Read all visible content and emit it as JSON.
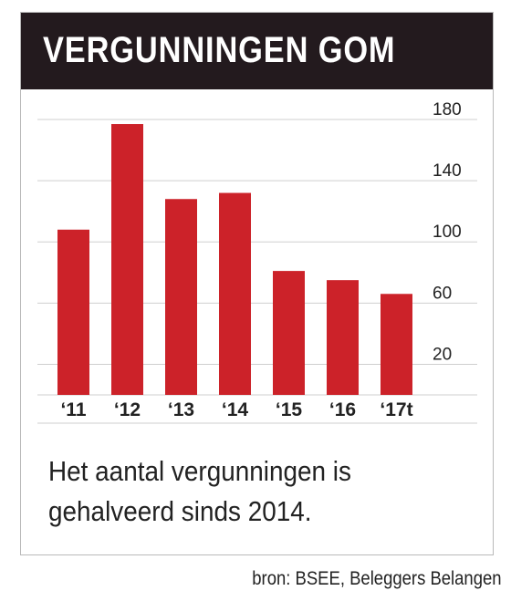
{
  "chart_data": {
    "type": "bar",
    "title": "VERGUNNINGEN GOM",
    "categories": [
      "‘11",
      "‘12",
      "‘13",
      "‘14",
      "‘15",
      "‘16",
      "‘17t"
    ],
    "values": [
      108,
      177,
      128,
      132,
      81,
      75,
      66
    ],
    "yticks": [
      20,
      60,
      100,
      140,
      180
    ],
    "ylim": [
      0,
      190
    ],
    "grid": true,
    "bar_color": "#cc2229",
    "xlabel": "",
    "ylabel": ""
  },
  "caption": "Het aantal vergunningen is gehalveerd sinds 2014.",
  "source": "bron: BSEE, Beleggers Belangen",
  "colors": {
    "header_bg": "#231a1e",
    "bar": "#cc2229",
    "grid": "#cfcfcf"
  }
}
